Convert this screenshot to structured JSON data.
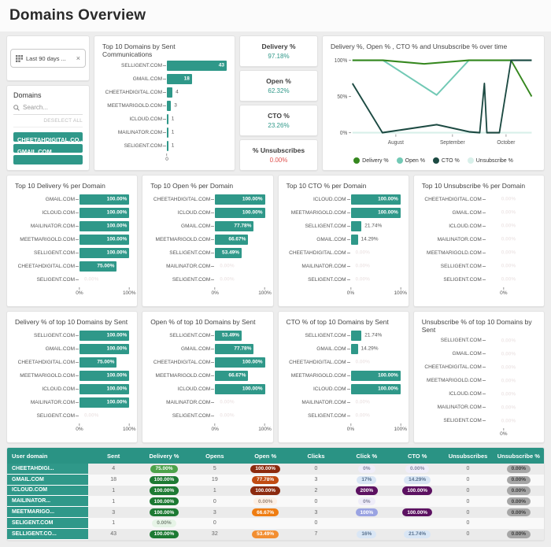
{
  "page": {
    "title": "Domains Overview"
  },
  "colors": {
    "teal": "#2f9889",
    "table_header": "#2a9384",
    "kpi_red": "#e0524f",
    "pills": {
      "green-dark": {
        "bg": "#1d7a33",
        "fg": "#ffffff"
      },
      "green-mid": {
        "bg": "#4da24a",
        "fg": "#ffffff"
      },
      "green-pale": {
        "bg": "#e6f4e6",
        "fg": "#7d8a7d"
      },
      "red-dark": {
        "bg": "#8c2a0e",
        "fg": "#ffffff"
      },
      "red-orange": {
        "bg": "#c14b12",
        "fg": "#ffffff"
      },
      "orange": {
        "bg": "#ef7d12",
        "fg": "#ffffff"
      },
      "orange-light": {
        "bg": "#f28e31",
        "fg": "#ffffff"
      },
      "pale-peach": {
        "bg": "#fdf0e5",
        "fg": "#9c8878"
      },
      "pale-lav": {
        "bg": "#efedf9",
        "fg": "#8686a0"
      },
      "blue-light": {
        "bg": "#d9e6f5",
        "fg": "#5a7390"
      },
      "purple-dark": {
        "bg": "#5c1161",
        "fg": "#ffffff"
      },
      "periwinkle": {
        "bg": "#9aa3e2",
        "fg": "#ffffff"
      },
      "gray": {
        "bg": "#a6a6a6",
        "fg": "#3e3e3e"
      }
    }
  },
  "filters": {
    "date_chip": {
      "label": "Last 90 days ...",
      "close": "×"
    },
    "domains": {
      "title": "Domains",
      "search_placeholder": "Search...",
      "deselect_all": "DESELECT ALL",
      "selected": [
        "CHEETAHDIGITAL.CO...",
        "GMAIL.COM"
      ]
    }
  },
  "kpis": [
    {
      "label": "Delivery %",
      "value": "97.18%",
      "color": "#2f9889"
    },
    {
      "label": "Open %",
      "value": "62.32%",
      "color": "#2f9889"
    },
    {
      "label": "CTO %",
      "value": "23.26%",
      "color": "#2f9889"
    },
    {
      "label": "% Unsubscribes",
      "value": "0.00%",
      "color": "#e0524f"
    }
  ],
  "chart_data": [
    {
      "id": "sent_by_domain",
      "type": "bar",
      "orientation": "horizontal",
      "title": "Top 10 Domains by Sent Communications",
      "categories": [
        "SELLIGENT.COM",
        "GMAIL.COM",
        "CHEETAHDIGITAL.COM",
        "MEETMARIGOLD.COM",
        "ICLOUD.COM",
        "MAILINATOR.COM",
        "SELIGENT.COM"
      ],
      "values": [
        43,
        18,
        4,
        3,
        1,
        1,
        1
      ],
      "labels": [
        "43",
        "18",
        "4",
        "3",
        "1",
        "1",
        "1"
      ],
      "xlim": [
        0,
        43
      ],
      "x_ticks": [
        "0"
      ]
    },
    {
      "id": "delivery_per_domain",
      "type": "bar",
      "orientation": "horizontal",
      "title": "Top 10 Delivery % per Domain",
      "categories": [
        "GMAIL.COM",
        "ICLOUD.COM",
        "MAILINATOR.COM",
        "MEETMARIGOLD.COM",
        "SELLIGENT.COM",
        "CHEETAHDIGITAL.COM",
        "SELIGENT.COM"
      ],
      "values": [
        100,
        100,
        100,
        100,
        100,
        75,
        0
      ],
      "labels": [
        "100.00%",
        "100.00%",
        "100.00%",
        "100.00%",
        "100.00%",
        "75.00%",
        "0.00%"
      ],
      "xlim": [
        0,
        100
      ],
      "x_ticks": [
        "0%",
        "100%"
      ]
    },
    {
      "id": "open_per_domain",
      "type": "bar",
      "orientation": "horizontal",
      "title": "Top 10  Open % per Domain",
      "categories": [
        "CHEETAHDIGITAL.COM",
        "ICLOUD.COM",
        "GMAIL.COM",
        "MEETMARIGOLD.COM",
        "SELLIGENT.COM",
        "MAILINATOR.COM",
        "SELIGENT.COM"
      ],
      "values": [
        100,
        100,
        77.78,
        66.67,
        53.49,
        0,
        0
      ],
      "labels": [
        "100.00%",
        "100.00%",
        "77.78%",
        "66.67%",
        "53.49%",
        "0.00%",
        "0.00%"
      ],
      "xlim": [
        0,
        100
      ],
      "x_ticks": [
        "0%",
        "100%"
      ]
    },
    {
      "id": "cto_per_domain",
      "type": "bar",
      "orientation": "horizontal",
      "title": "Top 10 CTO % per Domain",
      "categories": [
        "ICLOUD.COM",
        "MEETMARIGOLD.COM",
        "SELLIGENT.COM",
        "GMAIL.COM",
        "CHEETAHDIGITAL.COM",
        "MAILINATOR.COM",
        "SELIGENT.COM"
      ],
      "values": [
        100,
        100,
        21.74,
        14.29,
        0,
        0,
        0
      ],
      "labels": [
        "100.00%",
        "100.00%",
        "21.74%",
        "14.29%",
        "0.00%",
        "0.00%",
        "0.00%"
      ],
      "xlim": [
        0,
        100
      ],
      "x_ticks": [
        "0%",
        "100%"
      ]
    },
    {
      "id": "unsubscribe_per_domain",
      "type": "bar",
      "orientation": "horizontal",
      "title": "Top 10 Unsubscribe % per Domain",
      "categories": [
        "CHEETAHDIGITAL.COM",
        "GMAIL.COM",
        "ICLOUD.COM",
        "MAILINATOR.COM",
        "MEETMARIGOLD.COM",
        "SELLIGENT.COM",
        "SELIGENT.COM"
      ],
      "values": [
        0,
        0,
        0,
        0,
        0,
        0,
        0
      ],
      "labels": [
        "0.00%",
        "0.00%",
        "0.00%",
        "0.00%",
        "0.00%",
        "0.00%",
        "0.00%"
      ],
      "xlim": [
        0,
        100
      ],
      "x_ticks": [
        "0%"
      ]
    },
    {
      "id": "delivery_by_sent",
      "type": "bar",
      "orientation": "horizontal",
      "title": "Delivery % of top 10 Domains by Sent",
      "categories": [
        "SELLIGENT.COM",
        "GMAIL.COM",
        "CHEETAHDIGITAL.COM",
        "MEETMARIGOLD.COM",
        "ICLOUD.COM",
        "MAILINATOR.COM",
        "SELIGENT.COM"
      ],
      "values": [
        100,
        100,
        75,
        100,
        100,
        100,
        0
      ],
      "labels": [
        "100.00%",
        "100.00%",
        "75.00%",
        "100.00%",
        "100.00%",
        "100.00%",
        "0.00%"
      ],
      "xlim": [
        0,
        100
      ],
      "x_ticks": [
        "0%",
        "100%"
      ]
    },
    {
      "id": "open_by_sent",
      "type": "bar",
      "orientation": "horizontal",
      "title": "Open % of top 10 Domains by Sent",
      "categories": [
        "SELLIGENT.COM",
        "GMAIL.COM",
        "CHEETAHDIGITAL.COM",
        "MEETMARIGOLD.COM",
        "ICLOUD.COM",
        "MAILINATOR.COM",
        "SELIGENT.COM"
      ],
      "values": [
        53.49,
        77.78,
        100,
        66.67,
        100,
        0,
        0
      ],
      "labels": [
        "53.49%",
        "77.78%",
        "100.00%",
        "66.67%",
        "100.00%",
        "0.00%",
        "0.00%"
      ],
      "xlim": [
        0,
        100
      ],
      "x_ticks": [
        "0%",
        "100%"
      ]
    },
    {
      "id": "cto_by_sent",
      "type": "bar",
      "orientation": "horizontal",
      "title": "CTO % of top 10 Domains by Sent",
      "categories": [
        "SELLIGENT.COM",
        "GMAIL.COM",
        "CHEETAHDIGITAL.COM",
        "MEETMARIGOLD.COM",
        "ICLOUD.COM",
        "MAILINATOR.COM",
        "SELIGENT.COM"
      ],
      "values": [
        21.74,
        14.29,
        0,
        100,
        100,
        0,
        0
      ],
      "labels": [
        "21.74%",
        "14.29%",
        "0.00%",
        "100.00%",
        "100.00%",
        "0.00%",
        "0.00%"
      ],
      "xlim": [
        0,
        100
      ],
      "x_ticks": [
        "0%",
        "100%"
      ]
    },
    {
      "id": "unsubscribe_by_sent",
      "type": "bar",
      "orientation": "horizontal",
      "title": "Unsubscribe % of top 10 Domains by Sent",
      "categories": [
        "SELLIGENT.COM",
        "GMAIL.COM",
        "CHEETAHDIGITAL.COM",
        "MEETMARIGOLD.COM",
        "ICLOUD.COM",
        "MAILINATOR.COM",
        "SELIGENT.COM"
      ],
      "values": [
        0,
        0,
        0,
        0,
        0,
        0,
        0
      ],
      "labels": [
        "0.00%",
        "0.00%",
        "0.00%",
        "0.00%",
        "0.00%",
        "0.00%",
        "0.00%"
      ],
      "xlim": [
        0,
        100
      ],
      "x_ticks": [
        "0%"
      ]
    },
    {
      "id": "rates_over_time",
      "type": "line",
      "title": "Delivery %, Open % , CTO % and Unsubscribe % over time",
      "ylim": [
        0,
        100
      ],
      "y_ticks": [
        "100%",
        "50%",
        "0%"
      ],
      "x_ticks": [
        {
          "label": "August",
          "pos": 0.242
        },
        {
          "label": "September",
          "pos": 0.558
        },
        {
          "label": "October",
          "pos": 0.857
        }
      ],
      "legend_position": "bottom",
      "series": [
        {
          "name": "Unsubscribe %",
          "color": "#d8f0ea",
          "points": [
            [
              0,
              0
            ],
            [
              1,
              0
            ]
          ]
        },
        {
          "name": "Open %",
          "color": "#72c9b5",
          "points": [
            [
              0,
              100
            ],
            [
              0.17,
              100
            ],
            [
              0.47,
              52
            ],
            [
              0.65,
              100
            ],
            [
              1,
              100
            ]
          ]
        },
        {
          "name": "Delivery %",
          "color": "#35871e",
          "points": [
            [
              0,
              100
            ],
            [
              0.17,
              100
            ],
            [
              0.4,
              95
            ],
            [
              0.65,
              100
            ],
            [
              0.885,
              100
            ],
            [
              1,
              50
            ]
          ]
        },
        {
          "name": "CTO %",
          "color": "#1c4a42",
          "points": [
            [
              0,
              68
            ],
            [
              0.167,
              0
            ],
            [
              0.47,
              11
            ],
            [
              0.655,
              1
            ],
            [
              0.71,
              0
            ],
            [
              0.736,
              68
            ],
            [
              0.75,
              0
            ],
            [
              0.82,
              0
            ],
            [
              0.885,
              100
            ],
            [
              1,
              100
            ]
          ]
        }
      ],
      "legend": [
        {
          "label": "Delivery %",
          "color": "#35871e"
        },
        {
          "label": "Open %",
          "color": "#72c9b5"
        },
        {
          "label": "CTO %",
          "color": "#1c4a42"
        },
        {
          "label": "Unsubscribe %",
          "color": "#d8f0ea"
        }
      ]
    }
  ],
  "table": {
    "columns": [
      "User domain",
      "Sent",
      "Delivery %",
      "Opens",
      "Open %",
      "Clicks",
      "Click %",
      "CTO %",
      "Unsubscribes",
      "Unsubscribe %"
    ],
    "rows": [
      {
        "domain": "CHEETAHDIGI...",
        "sent": "4",
        "delivery": {
          "t": "75.00%",
          "s": "green-mid"
        },
        "opens": "5",
        "open": {
          "t": "100.00%",
          "s": "red-dark"
        },
        "clicks": "0",
        "click": {
          "t": "0%",
          "s": "pale-lav"
        },
        "cto": {
          "t": "0.00%",
          "s": "pale-lav"
        },
        "unsubscribes": "0",
        "unsubscribe": {
          "t": "0.00%",
          "s": "gray"
        }
      },
      {
        "domain": "GMAIL.COM",
        "sent": "18",
        "delivery": {
          "t": "100.00%",
          "s": "green-dark"
        },
        "opens": "19",
        "open": {
          "t": "77.78%",
          "s": "red-orange"
        },
        "clicks": "3",
        "click": {
          "t": "17%",
          "s": "blue-light"
        },
        "cto": {
          "t": "14.29%",
          "s": "blue-light"
        },
        "unsubscribes": "0",
        "unsubscribe": {
          "t": "0.00%",
          "s": "gray"
        }
      },
      {
        "domain": "ICLOUD.COM",
        "sent": "1",
        "delivery": {
          "t": "100.00%",
          "s": "green-dark"
        },
        "opens": "1",
        "open": {
          "t": "100.00%",
          "s": "red-dark"
        },
        "clicks": "2",
        "click": {
          "t": "200%",
          "s": "purple-dark"
        },
        "cto": {
          "t": "100.00%",
          "s": "purple-dark"
        },
        "unsubscribes": "0",
        "unsubscribe": {
          "t": "0.00%",
          "s": "gray"
        }
      },
      {
        "domain": "MAILINATOR...",
        "sent": "1",
        "delivery": {
          "t": "100.00%",
          "s": "green-dark"
        },
        "opens": "0",
        "open": {
          "t": "0.00%",
          "s": "pale-peach"
        },
        "clicks": "0",
        "click": {
          "t": "0%",
          "s": "pale-lav"
        },
        "cto": null,
        "unsubscribes": "0",
        "unsubscribe": {
          "t": "0.00%",
          "s": "gray"
        }
      },
      {
        "domain": "MEETMARIGO...",
        "sent": "3",
        "delivery": {
          "t": "100.00%",
          "s": "green-dark"
        },
        "opens": "3",
        "open": {
          "t": "66.67%",
          "s": "orange"
        },
        "clicks": "3",
        "click": {
          "t": "100%",
          "s": "periwinkle"
        },
        "cto": {
          "t": "100.00%",
          "s": "purple-dark"
        },
        "unsubscribes": "0",
        "unsubscribe": {
          "t": "0.00%",
          "s": "gray"
        }
      },
      {
        "domain": "SELIGENT.COM",
        "sent": "1",
        "delivery": {
          "t": "0.00%",
          "s": "green-pale"
        },
        "opens": "0",
        "open": null,
        "clicks": "0",
        "click": null,
        "cto": null,
        "unsubscribes": "0",
        "unsubscribe": null
      },
      {
        "domain": "SELLIGENT.CO...",
        "sent": "43",
        "delivery": {
          "t": "100.00%",
          "s": "green-dark"
        },
        "opens": "32",
        "open": {
          "t": "53.49%",
          "s": "orange-light"
        },
        "clicks": "7",
        "click": {
          "t": "16%",
          "s": "blue-light"
        },
        "cto": {
          "t": "21.74%",
          "s": "blue-light"
        },
        "unsubscribes": "0",
        "unsubscribe": {
          "t": "0.00%",
          "s": "gray"
        }
      }
    ]
  }
}
